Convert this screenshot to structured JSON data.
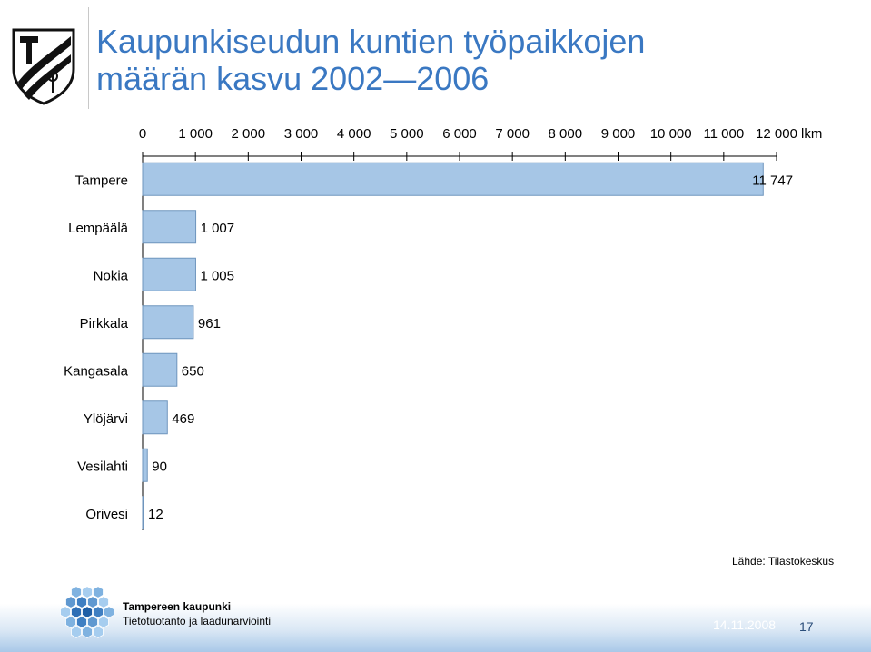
{
  "header": {
    "title_line1": "Kaupunkiseudun kuntien työpaikkojen",
    "title_line2": "määrän kasvu 2002—2006"
  },
  "logo": {
    "icon": "tampere-coat-of-arms-icon"
  },
  "source": "Lähde: Tilastokeskus",
  "footer": {
    "org_name": "Tampereen kaupunki",
    "org_unit": "Tietotuotanto ja laadunarviointi",
    "date": "14.11.2008",
    "page": "17",
    "logo_icon": "hexagon-cluster-icon"
  },
  "colors": {
    "title": "#3a78c2",
    "bar_fill": "#a6c6e6",
    "bar_stroke": "#6f95bd",
    "footer_band": "#a9c8e8"
  },
  "chart_data": {
    "type": "bar",
    "orientation": "horizontal",
    "categories": [
      "Tampere",
      "Lempäälä",
      "Nokia",
      "Pirkkala",
      "Kangasala",
      "Ylöjärvi",
      "Vesilahti",
      "Orivesi"
    ],
    "values": [
      11747,
      1007,
      1005,
      961,
      650,
      469,
      90,
      12
    ],
    "value_labels": [
      "11 747",
      "1 007",
      "1 005",
      "961",
      "650",
      "469",
      "90",
      "12"
    ],
    "x_ticks": [
      0,
      1000,
      2000,
      3000,
      4000,
      5000,
      6000,
      7000,
      8000,
      9000,
      10000,
      11000,
      12000
    ],
    "x_tick_labels": [
      "0",
      "1 000",
      "2 000",
      "3 000",
      "4 000",
      "5 000",
      "6 000",
      "7 000",
      "8 000",
      "9 000",
      "10 000",
      "11 000",
      "12 000"
    ],
    "x_unit": "lkm",
    "xlim": [
      0,
      12000
    ],
    "axis_position": "top",
    "grid": false,
    "legend": "none"
  }
}
